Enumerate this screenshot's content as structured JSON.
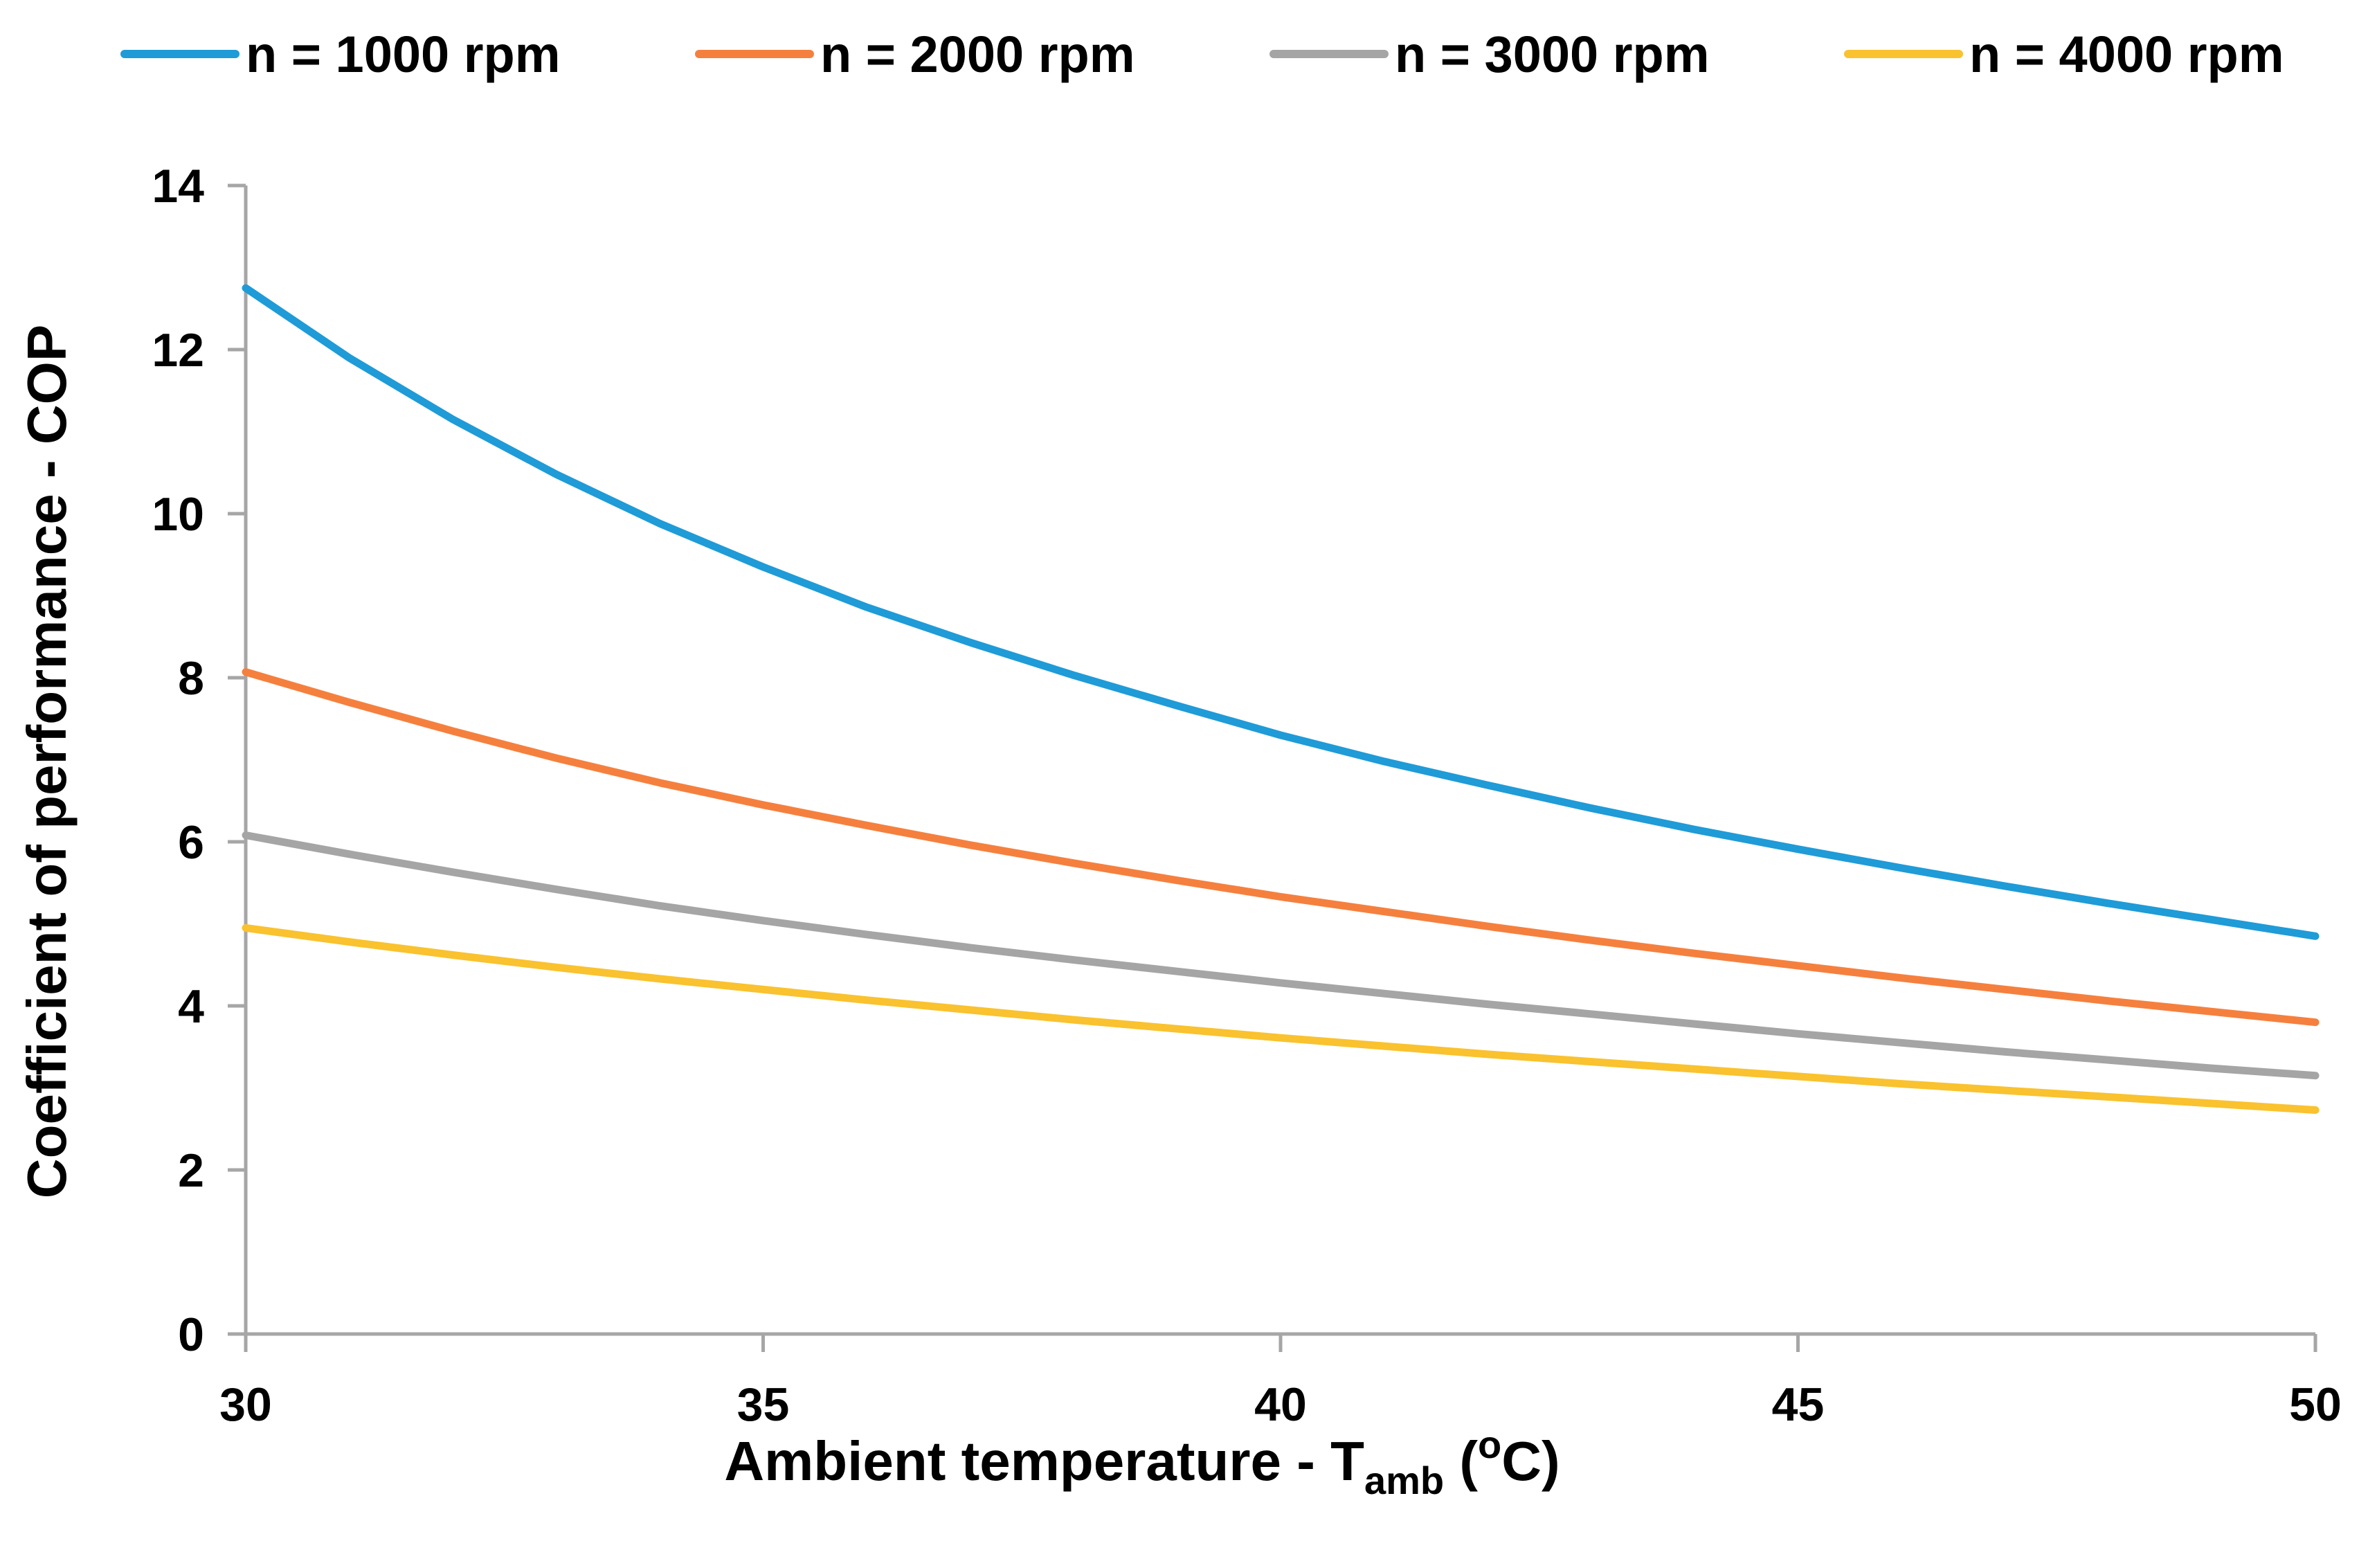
{
  "chart_data": {
    "type": "line",
    "title": "",
    "xlabel": {
      "main": "Ambient temperature - T",
      "sub": "amb",
      "unit_open": " (",
      "unit_sup": "o",
      "unit_close": "C)"
    },
    "ylabel": "Coefficient of performance - COP",
    "xlim": [
      30,
      50
    ],
    "ylim": [
      0,
      14
    ],
    "x_ticks": [
      30,
      35,
      40,
      45,
      50
    ],
    "y_ticks": [
      0,
      2,
      4,
      6,
      8,
      10,
      12,
      14
    ],
    "grid": false,
    "legend_position": "top",
    "x": [
      30,
      31,
      32,
      33,
      34,
      35,
      36,
      37,
      38,
      39,
      40,
      41,
      42,
      43,
      44,
      45,
      46,
      47,
      48,
      49,
      50
    ],
    "series": [
      {
        "name": "n = 1000 rpm",
        "color": "#1f9bd7",
        "values": [
          12.75,
          11.9,
          11.15,
          10.48,
          9.88,
          9.35,
          8.86,
          8.43,
          8.03,
          7.66,
          7.3,
          6.98,
          6.69,
          6.41,
          6.15,
          5.91,
          5.68,
          5.46,
          5.25,
          5.05,
          4.85
        ]
      },
      {
        "name": "n = 2000 rpm",
        "color": "#f5803e",
        "values": [
          8.07,
          7.7,
          7.35,
          7.02,
          6.72,
          6.45,
          6.2,
          5.96,
          5.74,
          5.53,
          5.33,
          5.15,
          4.97,
          4.8,
          4.64,
          4.49,
          4.34,
          4.2,
          4.06,
          3.93,
          3.8
        ]
      },
      {
        "name": "n = 3000 rpm",
        "color": "#a5a5a5",
        "values": [
          6.08,
          5.85,
          5.63,
          5.42,
          5.22,
          5.04,
          4.87,
          4.71,
          4.56,
          4.42,
          4.28,
          4.15,
          4.02,
          3.9,
          3.78,
          3.66,
          3.55,
          3.44,
          3.34,
          3.24,
          3.15
        ]
      },
      {
        "name": "n = 4000 rpm",
        "color": "#f9c22e",
        "values": [
          4.95,
          4.78,
          4.62,
          4.47,
          4.33,
          4.2,
          4.07,
          3.95,
          3.83,
          3.72,
          3.61,
          3.51,
          3.41,
          3.32,
          3.23,
          3.14,
          3.05,
          2.97,
          2.89,
          2.81,
          2.73
        ]
      }
    ]
  }
}
